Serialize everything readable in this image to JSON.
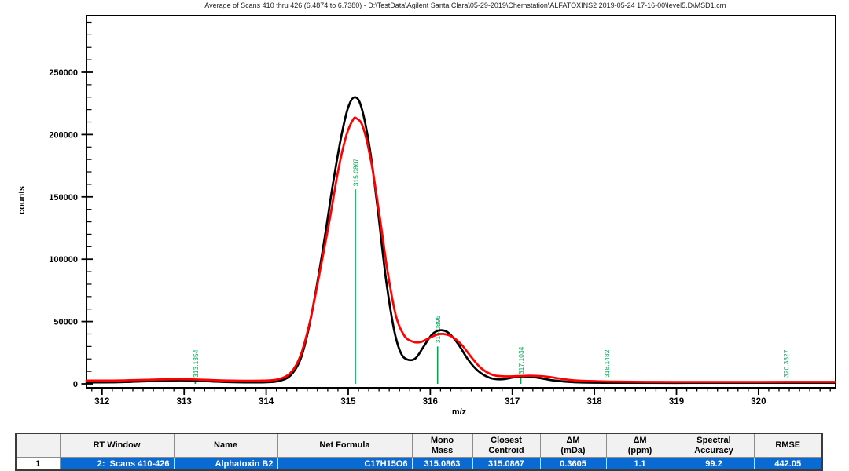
{
  "title": "Average of Scans 410 thru 426 (6.4874 to 6.7380) - D:\\TestData\\Agilent Santa Clara\\05-29-2019\\Chemstation\\ALFATOXINS2 2019-05-24 17-16-00\\level5.D\\MSD1.crn",
  "chart_data": {
    "type": "line",
    "title": "Average of Scans 410 thru 426 (6.4874 to 6.7380)",
    "xlabel": "m/z",
    "ylabel": "counts",
    "xlim": [
      311.81,
      320.94
    ],
    "ylim": [
      0,
      295000
    ],
    "grid": false,
    "x_major_ticks": [
      {
        "v": 312,
        "label": "312"
      },
      {
        "v": 313,
        "label": "313"
      },
      {
        "v": 314,
        "label": "314"
      },
      {
        "v": 315,
        "label": "315"
      },
      {
        "v": 316,
        "label": "316"
      },
      {
        "v": 317,
        "label": "317"
      },
      {
        "v": 318,
        "label": "318"
      },
      {
        "v": 319,
        "label": "319"
      },
      {
        "v": 320,
        "label": "320"
      }
    ],
    "x_minor_step": 0.125,
    "y_major_ticks": [
      {
        "v": 0,
        "label": "0"
      },
      {
        "v": 50000,
        "label": "50000"
      },
      {
        "v": 100000,
        "label": "100000"
      },
      {
        "v": 150000,
        "label": "150000"
      },
      {
        "v": 200000,
        "label": "200000"
      },
      {
        "v": 250000,
        "label": "250000"
      }
    ],
    "y_minor_step": 10000,
    "colors": {
      "raw_curve": "#000000",
      "fit_curve": "#ff0000",
      "annotation_green": "#00a651",
      "frame": "#000000"
    },
    "series": [
      {
        "name": "raw-spectrum-black",
        "color": "#000000",
        "points": [
          [
            311.81,
            1200
          ],
          [
            312.2,
            1300
          ],
          [
            312.55,
            2100
          ],
          [
            312.85,
            2800
          ],
          [
            313.1,
            2700
          ],
          [
            313.35,
            1900
          ],
          [
            313.6,
            1300
          ],
          [
            313.95,
            1200
          ],
          [
            314.15,
            2200
          ],
          [
            314.3,
            7000
          ],
          [
            314.42,
            20000
          ],
          [
            314.52,
            45000
          ],
          [
            314.62,
            80000
          ],
          [
            314.72,
            120000
          ],
          [
            314.82,
            163000
          ],
          [
            314.92,
            200000
          ],
          [
            315.0,
            222000
          ],
          [
            315.08,
            230000
          ],
          [
            315.16,
            222000
          ],
          [
            315.26,
            190000
          ],
          [
            315.36,
            140000
          ],
          [
            315.46,
            84000
          ],
          [
            315.56,
            43000
          ],
          [
            315.64,
            25000
          ],
          [
            315.72,
            19500
          ],
          [
            315.82,
            20500
          ],
          [
            315.92,
            30000
          ],
          [
            316.02,
            39500
          ],
          [
            316.12,
            43000
          ],
          [
            316.22,
            41000
          ],
          [
            316.34,
            32000
          ],
          [
            316.46,
            19500
          ],
          [
            316.58,
            10500
          ],
          [
            316.72,
            5000
          ],
          [
            316.86,
            3600
          ],
          [
            317.02,
            5200
          ],
          [
            317.14,
            6000
          ],
          [
            317.3,
            5000
          ],
          [
            317.5,
            2800
          ],
          [
            317.75,
            1300
          ],
          [
            318.1,
            900
          ],
          [
            318.6,
            800
          ],
          [
            319.2,
            800
          ],
          [
            319.8,
            800
          ],
          [
            320.4,
            850
          ],
          [
            320.93,
            900
          ]
        ]
      },
      {
        "name": "fit-spectrum-red",
        "color": "#ff0000",
        "points": [
          [
            311.81,
            2600
          ],
          [
            312.2,
            2700
          ],
          [
            312.55,
            3300
          ],
          [
            312.85,
            3700
          ],
          [
            313.1,
            3600
          ],
          [
            313.35,
            3000
          ],
          [
            313.6,
            2600
          ],
          [
            313.95,
            2600
          ],
          [
            314.15,
            3800
          ],
          [
            314.3,
            9000
          ],
          [
            314.42,
            23000
          ],
          [
            314.54,
            52000
          ],
          [
            314.66,
            92000
          ],
          [
            314.78,
            134000
          ],
          [
            314.88,
            172000
          ],
          [
            314.98,
            200000
          ],
          [
            315.06,
            212000
          ],
          [
            315.1,
            213000
          ],
          [
            315.18,
            206000
          ],
          [
            315.28,
            178000
          ],
          [
            315.38,
            136000
          ],
          [
            315.48,
            90000
          ],
          [
            315.58,
            55000
          ],
          [
            315.68,
            39000
          ],
          [
            315.78,
            34000
          ],
          [
            315.88,
            33500
          ],
          [
            315.98,
            36500
          ],
          [
            316.08,
            39500
          ],
          [
            316.16,
            40000
          ],
          [
            316.26,
            38000
          ],
          [
            316.38,
            31500
          ],
          [
            316.5,
            21500
          ],
          [
            316.62,
            12500
          ],
          [
            316.76,
            7200
          ],
          [
            316.92,
            6000
          ],
          [
            317.1,
            6300
          ],
          [
            317.25,
            6500
          ],
          [
            317.42,
            5800
          ],
          [
            317.6,
            4000
          ],
          [
            317.8,
            2600
          ],
          [
            318.15,
            1900
          ],
          [
            318.6,
            1600
          ],
          [
            319.2,
            1500
          ],
          [
            319.8,
            1500
          ],
          [
            320.4,
            1550
          ],
          [
            320.93,
            1600
          ]
        ]
      }
    ],
    "annotations": [
      {
        "mz": 313.1354,
        "label": "313.1354",
        "line_top": 2500
      },
      {
        "mz": 315.0867,
        "label": "315.0867",
        "line_top": 156000
      },
      {
        "mz": 316.0895,
        "label": "316.0895",
        "line_top": 30000
      },
      {
        "mz": 317.1034,
        "label": "317.1034",
        "line_top": 5000
      },
      {
        "mz": 318.1482,
        "label": "318.1482",
        "line_top": 2500
      },
      {
        "mz": 320.3327,
        "label": "320.3327",
        "line_top": 2500
      }
    ]
  },
  "table": {
    "columns": [
      {
        "label": ""
      },
      {
        "label": "RT Window"
      },
      {
        "label": "Name"
      },
      {
        "label": "Net Formula"
      },
      {
        "label": "Mono\nMass"
      },
      {
        "label": "Closest\nCentroid"
      },
      {
        "label": "ΔM\n(mDa)"
      },
      {
        "label": "ΔM\n(ppm)"
      },
      {
        "label": "Spectral\nAccuracy"
      },
      {
        "label": "RMSE"
      }
    ],
    "rows": [
      [
        "1",
        "2:  Scans 410-426",
        "Alphatoxin B2",
        "C17H15O6",
        "315.0863",
        "315.0867",
        "0.3605",
        "1.1",
        "99.2",
        "442.05"
      ]
    ]
  }
}
